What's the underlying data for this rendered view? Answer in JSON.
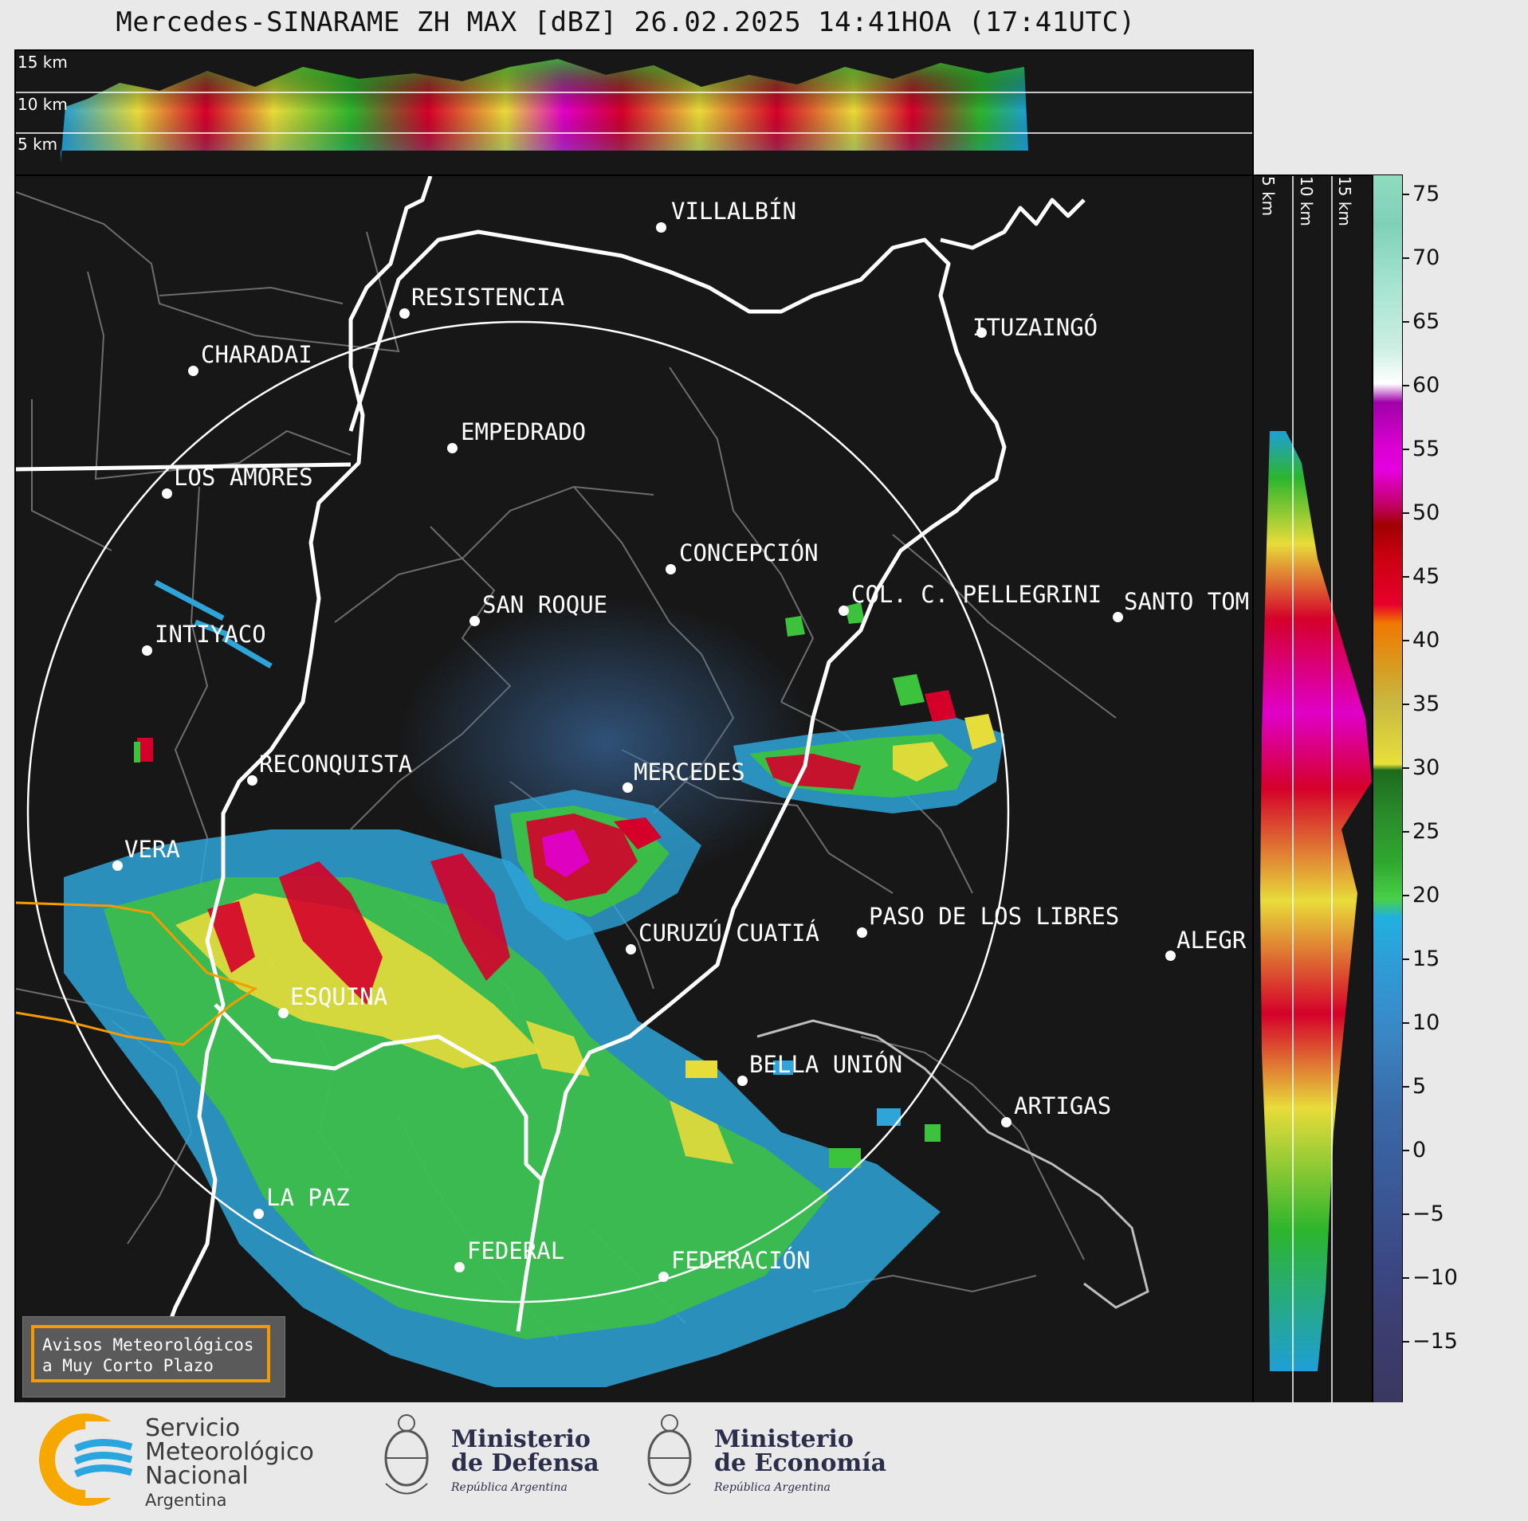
{
  "title": "Mercedes-SINARAME ZH MAX [dBZ] 26.02.2025 14:41HOA (17:41UTC)",
  "height_labels": [
    "15 km",
    "10 km",
    "5 km"
  ],
  "colorbar": {
    "ticks": [
      "75",
      "70",
      "65",
      "60",
      "55",
      "50",
      "45",
      "40",
      "35",
      "30",
      "25",
      "20",
      "15",
      "10",
      "5",
      "0",
      "−5",
      "−10",
      "−15"
    ]
  },
  "cities": [
    {
      "name": "VILLALBÍN"
    },
    {
      "name": "RESISTENCIA"
    },
    {
      "name": "CHARADAI"
    },
    {
      "name": "ITUZAINGÓ"
    },
    {
      "name": "EMPEDRADO"
    },
    {
      "name": "LOS AMORES"
    },
    {
      "name": "CONCEPCIÓN"
    },
    {
      "name": "SAN ROQUE"
    },
    {
      "name": "COL. C. PELLEGRINI"
    },
    {
      "name": "SANTO TOM"
    },
    {
      "name": "INTIYACO"
    },
    {
      "name": "RECONQUISTA"
    },
    {
      "name": "MERCEDES"
    },
    {
      "name": "VERA"
    },
    {
      "name": "CURUZÚ CUATIÁ"
    },
    {
      "name": "PASO DE LOS LIBRES"
    },
    {
      "name": "ALEGR"
    },
    {
      "name": "ESQUINA"
    },
    {
      "name": "BELLA UNIÓN"
    },
    {
      "name": "ARTIGAS"
    },
    {
      "name": "LA PAZ"
    },
    {
      "name": "FEDERAL"
    },
    {
      "name": "FEDERACIÓN"
    }
  ],
  "avisos": {
    "line1": "Avisos Meteorológicos",
    "line2": "a Muy Corto Plazo"
  },
  "logos": {
    "smn": {
      "line1": "Servicio",
      "line2": "Meteorológico",
      "line3": "Nacional",
      "line4": "Argentina"
    },
    "defensa": {
      "line1": "Ministerio",
      "line2": "de Defensa",
      "line3": "República Argentina"
    },
    "economia": {
      "line1": "Ministerio",
      "line2": "de Economía",
      "line3": "República Argentina"
    }
  },
  "colors": {
    "background": "#171717",
    "accent_orange": "#f59b00",
    "border_white": "#ffffff"
  }
}
